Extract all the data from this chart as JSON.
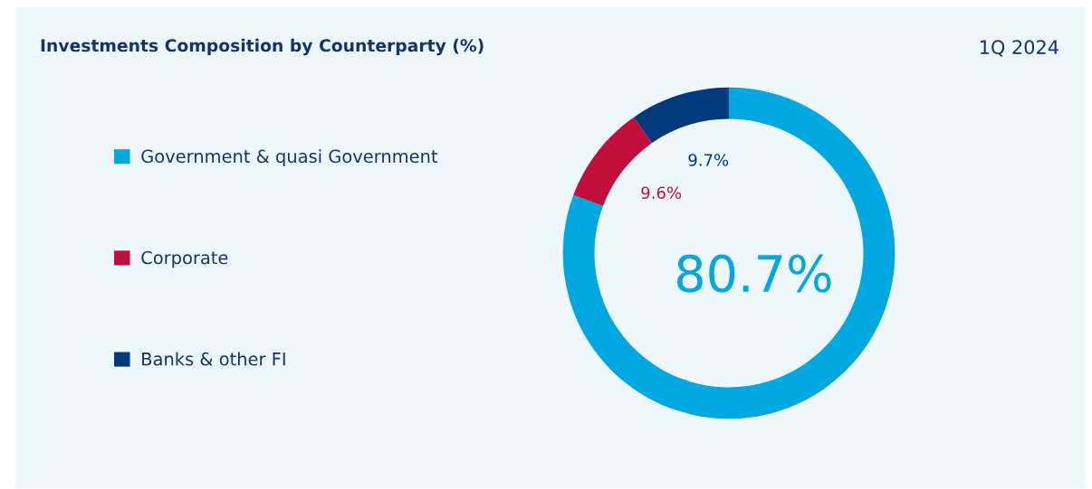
{
  "chart_data": {
    "type": "donut",
    "title": "Investments Composition by Counterparty (%)",
    "subtitle": "1Q 2024",
    "categories": [
      "Government & quasi Government",
      "Corporate",
      "Banks & other FI"
    ],
    "values": [
      80.7,
      9.6,
      9.7
    ],
    "colors": [
      "#00a7e1",
      "#c20e3a",
      "#003a7d"
    ],
    "value_labels": [
      "80.7%",
      "9.6%",
      "9.7%"
    ],
    "legend": "left"
  }
}
